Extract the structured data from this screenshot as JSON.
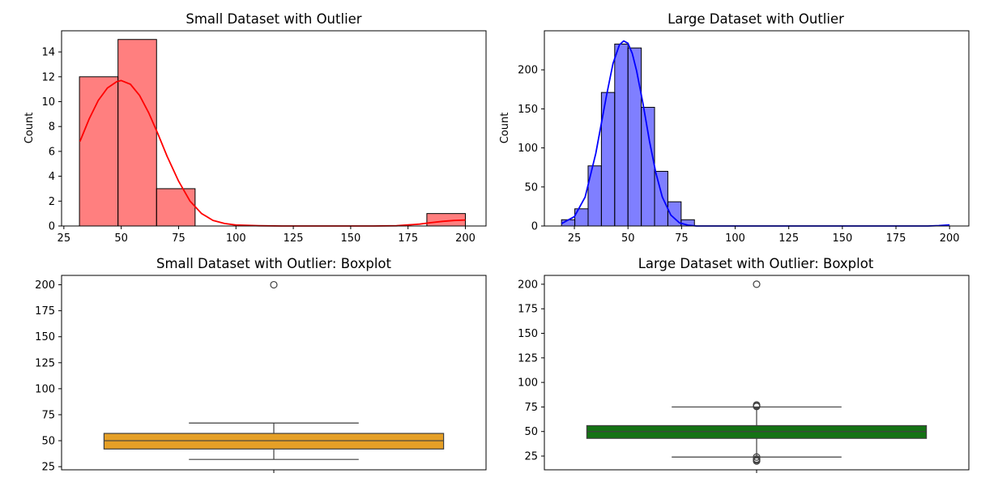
{
  "chart_data": [
    {
      "type": "histogram",
      "title": "Small Dataset with Outlier",
      "xlabel": "",
      "ylabel": "Count",
      "xlim": [
        24,
        209
      ],
      "ylim": [
        0,
        15.7
      ],
      "xticks": [
        25,
        50,
        75,
        100,
        125,
        150,
        175,
        200
      ],
      "yticks": [
        0,
        2,
        4,
        6,
        8,
        10,
        12,
        14
      ],
      "bar_color": "#ff0000",
      "bar_opacity": 0.5,
      "edge_color": "#000000",
      "bins": [
        {
          "x0": 31.8,
          "x1": 48.6,
          "count": 12
        },
        {
          "x0": 48.6,
          "x1": 65.4,
          "count": 15
        },
        {
          "x0": 65.4,
          "x1": 82.2,
          "count": 3
        },
        {
          "x0": 183.2,
          "x1": 200.0,
          "count": 1
        }
      ],
      "kde": {
        "color": "#ff0000",
        "x": [
          32,
          36,
          40,
          44,
          48,
          50,
          54,
          58,
          62,
          66,
          70,
          75,
          80,
          85,
          90,
          95,
          100,
          110,
          120,
          140,
          160,
          170,
          180,
          185,
          190,
          195,
          200
        ],
        "y": [
          6.8,
          8.6,
          10.1,
          11.1,
          11.6,
          11.7,
          11.4,
          10.5,
          9.1,
          7.4,
          5.6,
          3.6,
          2.0,
          1.0,
          0.45,
          0.2,
          0.08,
          0.02,
          0.0,
          0.0,
          0.0,
          0.02,
          0.15,
          0.27,
          0.37,
          0.44,
          0.48
        ]
      }
    },
    {
      "type": "histogram",
      "title": "Large Dataset with Outlier",
      "xlabel": "",
      "ylabel": "Count",
      "xlim": [
        11,
        209
      ],
      "ylim": [
        0,
        250
      ],
      "xticks": [
        25,
        50,
        75,
        100,
        125,
        150,
        175,
        200
      ],
      "yticks": [
        0,
        50,
        100,
        150,
        200
      ],
      "bar_color": "#0000ff",
      "bar_opacity": 0.5,
      "edge_color": "#000000",
      "bins": [
        {
          "x0": 19.0,
          "x1": 25.2,
          "count": 8
        },
        {
          "x0": 25.2,
          "x1": 31.4,
          "count": 22
        },
        {
          "x0": 31.4,
          "x1": 37.6,
          "count": 77
        },
        {
          "x0": 37.6,
          "x1": 43.8,
          "count": 171
        },
        {
          "x0": 43.8,
          "x1": 50.0,
          "count": 233
        },
        {
          "x0": 50.0,
          "x1": 56.2,
          "count": 228
        },
        {
          "x0": 56.2,
          "x1": 62.4,
          "count": 152
        },
        {
          "x0": 62.4,
          "x1": 68.6,
          "count": 70
        },
        {
          "x0": 68.6,
          "x1": 74.8,
          "count": 31
        },
        {
          "x0": 74.8,
          "x1": 81.0,
          "count": 8
        }
      ],
      "kde": {
        "color": "#0000ff",
        "x": [
          19,
          25,
          30,
          35,
          40,
          43,
          46,
          48,
          50,
          52,
          54,
          57,
          60,
          63,
          66,
          70,
          74,
          78,
          82,
          86,
          90,
          100,
          150,
          190,
          195,
          200
        ],
        "y": [
          3,
          12,
          37,
          93,
          167,
          208,
          232,
          237,
          234,
          221,
          199,
          157,
          109,
          68,
          37,
          14,
          4,
          1,
          0,
          0,
          0,
          0,
          0,
          0,
          0.5,
          1.5
        ]
      }
    },
    {
      "type": "boxplot",
      "title": "Small Dataset with Outlier: Boxplot",
      "xlabel": "",
      "ylabel": "",
      "ylim": [
        22,
        209
      ],
      "yticks": [
        25,
        50,
        75,
        100,
        125,
        150,
        175,
        200
      ],
      "box_color": "#e59f26",
      "stats": {
        "whisker_low": 32,
        "q1": 42,
        "median": 50,
        "q3": 57,
        "whisker_high": 67
      },
      "outliers": [
        200
      ]
    },
    {
      "type": "boxplot",
      "title": "Large Dataset with Outlier: Boxplot",
      "xlabel": "",
      "ylabel": "",
      "ylim": [
        11,
        209
      ],
      "yticks": [
        25,
        50,
        75,
        100,
        125,
        150,
        175,
        200
      ],
      "box_color": "#147214",
      "stats": {
        "whisker_low": 24,
        "q1": 43,
        "median": 50,
        "q3": 56,
        "whisker_high": 75
      },
      "outliers": [
        200,
        77,
        76,
        75.5,
        24,
        22,
        21,
        20
      ]
    }
  ]
}
